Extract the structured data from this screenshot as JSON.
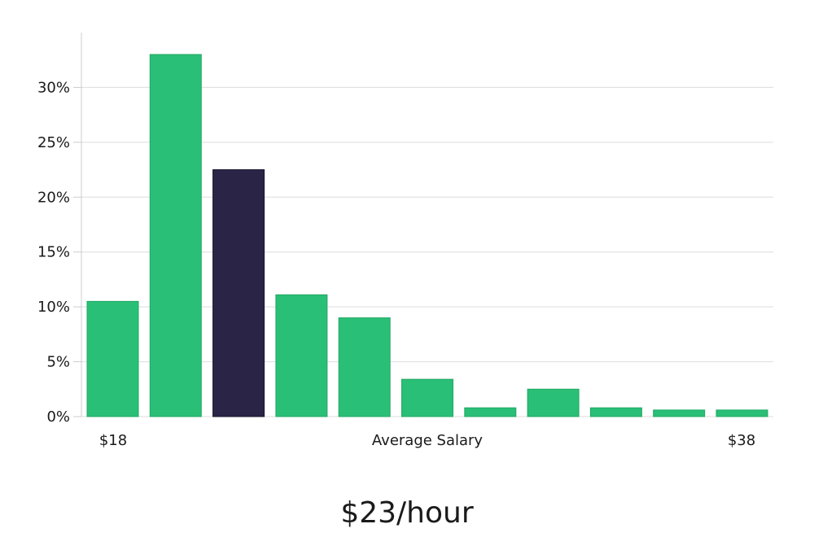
{
  "chart_data": {
    "type": "bar",
    "series": [
      {
        "values": [
          10.5,
          33.0,
          22.5,
          11.1,
          9.0,
          3.4,
          0.8,
          2.5,
          0.8,
          0.6,
          0.6
        ]
      }
    ],
    "highlight_index": 2,
    "colors": {
      "bar": "#2abf76",
      "highlight": "#2a2546",
      "grid": "#dddddd",
      "axis": "#cccccc"
    },
    "ylim": [
      0,
      35
    ],
    "yticks": [
      0,
      5,
      10,
      15,
      20,
      25,
      30
    ],
    "ytick_format": "%",
    "x_left_label": "$18",
    "x_center_label": "Average Salary",
    "x_right_label": "$38",
    "grid": true,
    "legend": "none"
  },
  "summary": {
    "value_label": "$23/hour"
  }
}
